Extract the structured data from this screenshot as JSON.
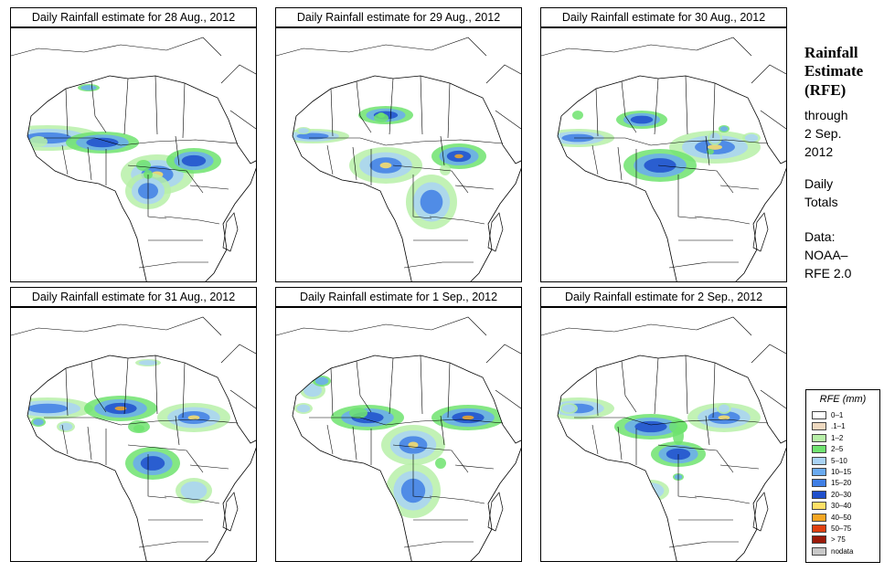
{
  "panels": [
    {
      "title": "Daily Rainfall estimate for  28 Aug., 2012",
      "date": "28 Aug., 2012"
    },
    {
      "title": "Daily Rainfall estimate for  29 Aug., 2012",
      "date": "29 Aug., 2012"
    },
    {
      "title": "Daily Rainfall estimate for  30 Aug., 2012",
      "date": "30 Aug., 2012"
    },
    {
      "title": "Daily Rainfall estimate for  31 Aug., 2012",
      "date": "31 Aug., 2012"
    },
    {
      "title": "Daily Rainfall estimate for  1 Sep., 2012",
      "date": "1 Sep., 2012"
    },
    {
      "title": "Daily Rainfall estimate for  2 Sep., 2012",
      "date": "2 Sep., 2012"
    }
  ],
  "sidebar": {
    "title_line1": "Rainfall",
    "title_line2": "Estimate",
    "title_line3": "(RFE)",
    "through": "through",
    "end_date_line1": "2 Sep.",
    "end_date_line2": "2012",
    "totals_line1": "Daily",
    "totals_line2": "Totals",
    "data_line1": "Data:",
    "data_line2": "NOAA–",
    "data_line3": "RFE 2.0"
  },
  "legend": {
    "title": "RFE (mm)",
    "classes": [
      {
        "label": "0–1",
        "color": "#ffffff"
      },
      {
        "label": ".1–1",
        "color": "#efd9c0"
      },
      {
        "label": "1–2",
        "color": "#b7f0a8"
      },
      {
        "label": "2–5",
        "color": "#6fe36f"
      },
      {
        "label": "5–10",
        "color": "#a9d3f5"
      },
      {
        "label": "10–15",
        "color": "#6aaaf0"
      },
      {
        "label": "15–20",
        "color": "#3f7fe5"
      },
      {
        "label": "20–30",
        "color": "#1f4fcc"
      },
      {
        "label": "30–40",
        "color": "#ffe066"
      },
      {
        "label": "40–50",
        "color": "#f5a623"
      },
      {
        "label": "50–75",
        "color": "#e04010"
      },
      {
        "label": "> 75",
        "color": "#9b1a0a"
      },
      {
        "label": "nodata",
        "color": "#c8c8c8"
      }
    ]
  }
}
